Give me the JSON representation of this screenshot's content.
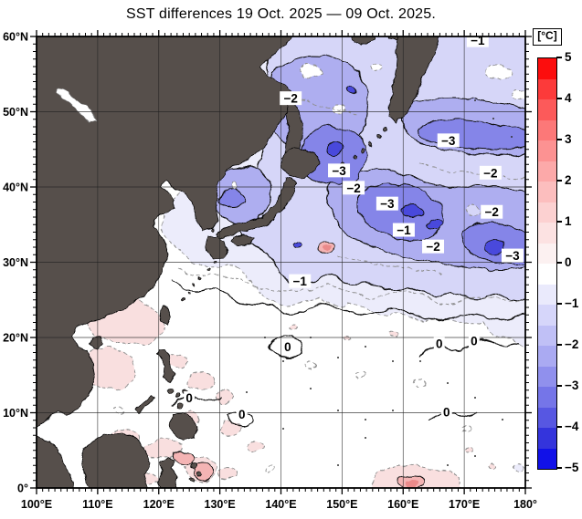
{
  "title": "SST differences 19 Oct. 2025 — 09 Oct. 2025.",
  "chart_data": {
    "type": "heatmap",
    "subtype": "filled-contour-map",
    "title": "SST differences 19 Oct. 2025 — 09 Oct. 2025.",
    "region": {
      "lon_min": "100°E",
      "lon_max": "180°",
      "lat_min": "0°",
      "lat_max": "60°N"
    },
    "x_axis": {
      "ticks": [
        "100°E",
        "110°E",
        "120°E",
        "130°E",
        "140°E",
        "150°E",
        "160°E",
        "170°E",
        "180°"
      ],
      "major_tick_interval_deg": 10,
      "minor_tick_interval_deg": 1
    },
    "y_axis": {
      "ticks": [
        "60°N",
        "50°N",
        "40°N",
        "30°N",
        "20°N",
        "10°N",
        "0°"
      ],
      "major_tick_interval_deg": 10,
      "minor_tick_interval_deg": 1
    },
    "grid_interval_deg": 10,
    "colorbar": {
      "unit": "[°C]",
      "tick_labels": [
        "5",
        "4",
        "3",
        "2",
        "1",
        "0",
        "−1",
        "−2",
        "−3",
        "−4",
        "−5"
      ],
      "range_c": [
        -5,
        5
      ],
      "step_per_color_c": 0.5,
      "segment_colors_top_to_bottom": [
        "#FC0D0D",
        "#FC3A3A",
        "#FC5A5A",
        "#FC7878",
        "#FC9292",
        "#FCA9A9",
        "#FCBEBE",
        "#FCD1D1",
        "#FCE2E2",
        "#FCF1F1",
        "#FFFFFF",
        "#EAEAFC",
        "#D6D6FA",
        "#C0C0F6",
        "#AAAAF2",
        "#9090ED",
        "#7575E8",
        "#5757E2",
        "#3434DC",
        "#1111E8"
      ]
    },
    "contour_levels": {
      "solid_black_interval_c": 1,
      "dashed_gray_interval_c": 0.5
    },
    "labeled_contours": [
      {
        "value": "−1",
        "lon_e": 172.2,
        "lat_n": 59.5
      },
      {
        "value": "−2",
        "lon_e": 141.6,
        "lat_n": 51.8
      },
      {
        "value": "−3",
        "lon_e": 167.4,
        "lat_n": 46.2
      },
      {
        "value": "−3",
        "lon_e": 149.5,
        "lat_n": 42.2
      },
      {
        "value": "−2",
        "lon_e": 151.9,
        "lat_n": 39.9
      },
      {
        "value": "−2",
        "lon_e": 174.3,
        "lat_n": 41.9
      },
      {
        "value": "−3",
        "lon_e": 157.4,
        "lat_n": 37.8
      },
      {
        "value": "−1",
        "lon_e": 160.1,
        "lat_n": 34.3
      },
      {
        "value": "−2",
        "lon_e": 164.9,
        "lat_n": 32.1
      },
      {
        "value": "−2",
        "lon_e": 174.5,
        "lat_n": 36.7
      },
      {
        "value": "−3",
        "lon_e": 177.9,
        "lat_n": 30.9
      },
      {
        "value": "−1",
        "lon_e": 143.1,
        "lat_n": 27.5
      },
      {
        "value": "0",
        "lon_e": 141.1,
        "lat_n": 18.8
      },
      {
        "value": "0",
        "lon_e": 165.9,
        "lat_n": 19.2
      },
      {
        "value": "0",
        "lon_e": 171.6,
        "lat_n": 19.6
      },
      {
        "value": "0",
        "lon_e": 125.0,
        "lat_n": 12.0
      },
      {
        "value": "0",
        "lon_e": 133.6,
        "lat_n": 9.8
      },
      {
        "value": "0",
        "lon_e": 167.1,
        "lat_n": 10.1
      }
    ],
    "palette": {
      "sea_no_change": "#FFFFFF",
      "land": "#564F4C",
      "lake": "#FFFFFF",
      "cooling_light": "#D6D6F8",
      "cooling_medium": "#AEAEF0",
      "cooling_strong": "#8585E8",
      "cooling_max": "#4A4ADC",
      "warming_light": "#F9DFDF",
      "warming_medium": "#F4B4B4"
    }
  }
}
